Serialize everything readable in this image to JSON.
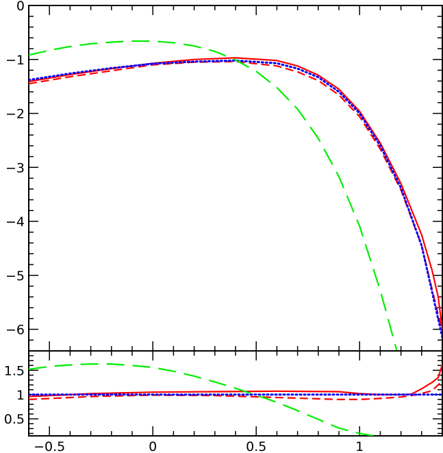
{
  "chart_data": [
    {
      "panel": "main",
      "type": "line",
      "xlim": [
        -0.6,
        1.4
      ],
      "ylim": [
        -6.4,
        0
      ],
      "xticks": [
        -0.5,
        0,
        0.5,
        1
      ],
      "yticks": [
        0,
        -1,
        -2,
        -3,
        -4,
        -5,
        -6
      ],
      "ytick_labels": [
        "0",
        "−1",
        "−2",
        "−3",
        "−4",
        "−5",
        "−6"
      ],
      "grid": false,
      "legend": "none",
      "series": [
        {
          "color": "#ff0000",
          "style": "solid",
          "x": [
            -0.6,
            -0.4,
            -0.2,
            0.0,
            0.2,
            0.4,
            0.6,
            0.7,
            0.8,
            0.9,
            1.0,
            1.1,
            1.2,
            1.3,
            1.35,
            1.38,
            1.4
          ],
          "y": [
            -1.41,
            -1.28,
            -1.17,
            -1.07,
            -1.0,
            -0.97,
            -1.02,
            -1.12,
            -1.29,
            -1.55,
            -1.96,
            -2.55,
            -3.3,
            -4.25,
            -4.9,
            -5.4,
            -6.0
          ]
        },
        {
          "color": "#ff0000",
          "style": "dashed",
          "x": [
            -0.6,
            -0.4,
            -0.2,
            0.0,
            0.2,
            0.4,
            0.6,
            0.7,
            0.8,
            0.9,
            1.0,
            1.1,
            1.2,
            1.3,
            1.4
          ],
          "y": [
            -1.45,
            -1.32,
            -1.21,
            -1.1,
            -1.05,
            -1.04,
            -1.12,
            -1.23,
            -1.39,
            -1.66,
            -2.06,
            -2.66,
            -3.42,
            -4.45,
            -6.05
          ]
        },
        {
          "color": "#0000ff",
          "style": "dotted",
          "x": [
            -0.6,
            -0.4,
            -0.2,
            0.0,
            0.2,
            0.4,
            0.6,
            0.7,
            0.8,
            0.9,
            1.0,
            1.1,
            1.2,
            1.3,
            1.4
          ],
          "y": [
            -1.38,
            -1.26,
            -1.16,
            -1.08,
            -1.04,
            -1.02,
            -1.07,
            -1.17,
            -1.33,
            -1.6,
            -2.0,
            -2.6,
            -3.38,
            -4.45,
            -6.15
          ]
        },
        {
          "color": "#00ee00",
          "style": "longdash",
          "x": [
            -0.6,
            -0.5,
            -0.4,
            -0.3,
            -0.2,
            -0.1,
            0.0,
            0.1,
            0.2,
            0.3,
            0.4,
            0.5,
            0.6,
            0.7,
            0.8,
            0.9,
            1.0,
            1.1,
            1.18
          ],
          "y": [
            -0.92,
            -0.83,
            -0.76,
            -0.71,
            -0.68,
            -0.66,
            -0.66,
            -0.69,
            -0.75,
            -0.85,
            -1.01,
            -1.22,
            -1.52,
            -1.92,
            -2.46,
            -3.17,
            -4.09,
            -5.28,
            -6.4
          ]
        }
      ]
    },
    {
      "panel": "ratio",
      "type": "line",
      "xlim": [
        -0.6,
        1.4
      ],
      "ylim": [
        0.15,
        1.9
      ],
      "xticks": [
        -0.5,
        0,
        0.5,
        1
      ],
      "xtick_labels": [
        "−0.5",
        "0",
        "0.5",
        "1"
      ],
      "yticks": [
        1.5,
        1,
        0.5
      ],
      "ytick_labels": [
        "1.5",
        "1",
        "0.5"
      ],
      "grid": false,
      "legend": "none",
      "series": [
        {
          "color": "#ff0000",
          "style": "solid",
          "x": [
            -0.6,
            -0.3,
            0.0,
            0.3,
            0.6,
            0.9,
            1.0,
            1.1,
            1.2,
            1.25,
            1.3,
            1.35,
            1.38,
            1.4
          ],
          "y": [
            0.96,
            1.02,
            1.05,
            1.06,
            1.07,
            1.06,
            1.02,
            1.0,
            1.0,
            1.01,
            1.12,
            1.25,
            1.35,
            1.62
          ]
        },
        {
          "color": "#ff0000",
          "style": "dashed",
          "x": [
            -0.6,
            -0.3,
            0.0,
            0.3,
            0.6,
            0.9,
            1.0,
            1.1,
            1.2,
            1.28,
            1.35,
            1.4
          ],
          "y": [
            0.9,
            0.96,
            0.99,
            0.98,
            0.94,
            0.9,
            0.9,
            0.92,
            0.95,
            1.0,
            1.08,
            1.28
          ]
        },
        {
          "color": "#0000ff",
          "style": "dotted",
          "x": [
            -0.6,
            1.4
          ],
          "y": [
            1.0,
            1.0
          ]
        },
        {
          "color": "#00ee00",
          "style": "longdash",
          "x": [
            -0.6,
            -0.5,
            -0.4,
            -0.3,
            -0.2,
            -0.1,
            0.0,
            0.1,
            0.2,
            0.3,
            0.4,
            0.5,
            0.6,
            0.7,
            0.8,
            0.9,
            1.0,
            1.07
          ],
          "y": [
            1.52,
            1.58,
            1.61,
            1.63,
            1.63,
            1.6,
            1.56,
            1.48,
            1.38,
            1.26,
            1.13,
            0.99,
            0.84,
            0.67,
            0.49,
            0.31,
            0.2,
            0.15
          ]
        }
      ]
    }
  ]
}
